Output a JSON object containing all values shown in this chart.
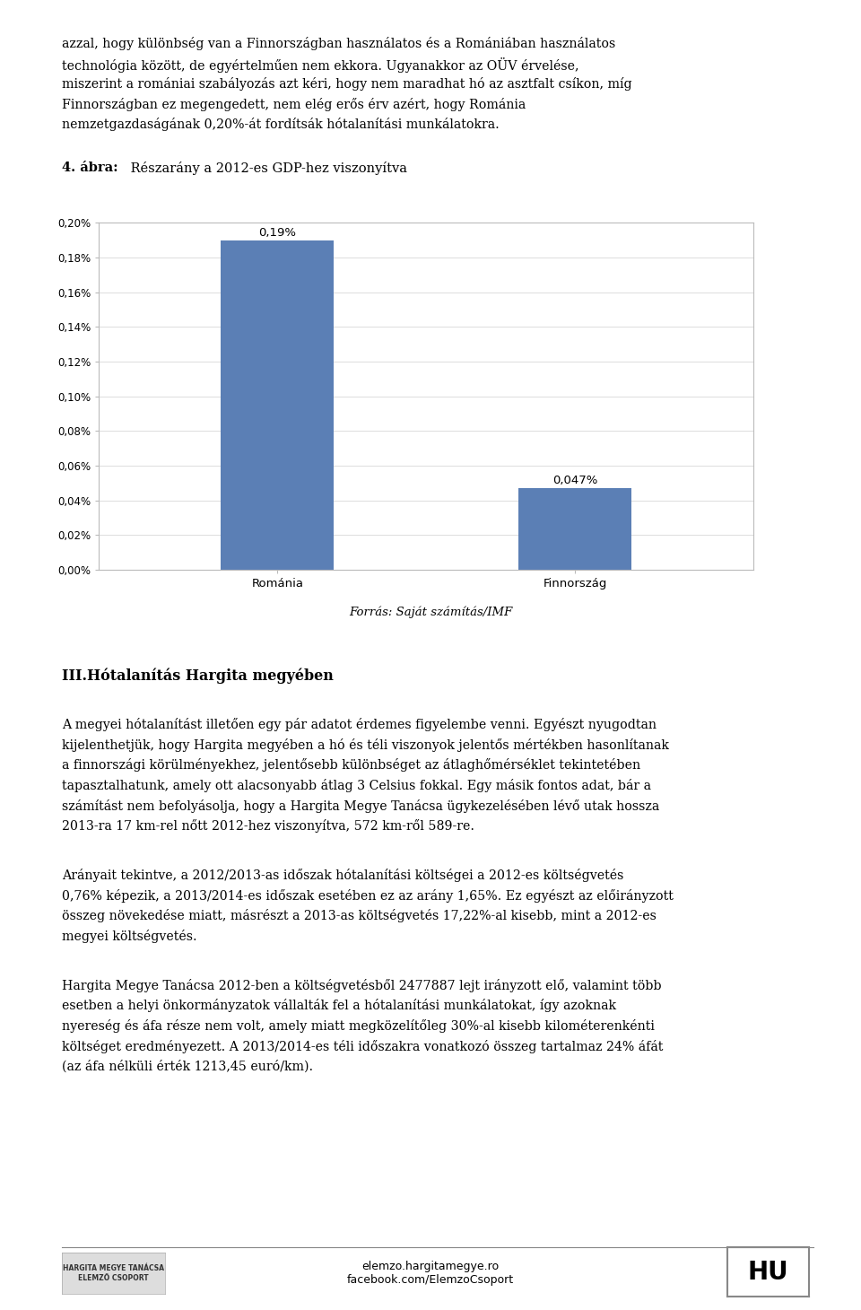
{
  "categories": [
    "Románia",
    "Finnország"
  ],
  "values": [
    0.0019,
    0.00047
  ],
  "bar_labels": [
    "0,19%",
    "0,047%"
  ],
  "bar_color": "#5B7FB5",
  "ylim": [
    0,
    0.002
  ],
  "yticks": [
    0.0,
    0.0002,
    0.0004,
    0.0006,
    0.0008,
    0.001,
    0.0012,
    0.0014,
    0.0016,
    0.0018,
    0.002
  ],
  "ytick_labels": [
    "0,00%",
    "0,02%",
    "0,04%",
    "0,06%",
    "0,08%",
    "0,10%",
    "0,12%",
    "0,14%",
    "0,16%",
    "0,18%",
    "0,20%"
  ],
  "source_label": "Forrás: Saját számítás/IMF",
  "chart_title_bold": "4. ábra:",
  "chart_title_rest": " Részarány a 2012-es GDP-hez viszonyítva",
  "page_title_top": "azzal, hogy különbség van a Finnországban használatos és a Romániában használatos\ntechnológia között, de egyértelműen nem ekkora. Ugyanakkor az OÜV érvelése,\nmiszerint a romániai szabályozás azt kéri, hogy nem maradhat hó az asztfalt csíkon, míg\nFinnországban ez megengedett, nem elég erős érv azért, hogy Románia\nnemzetgazdaságának 0,20%-át fordítsák hótalanítási munkálatokra.",
  "section_title": "III.Hótalanítás Hargita megyében",
  "body_text_1": "A megyei hótalanítást illetően egy pár adatot érdemes figyelembe venni. Egyészt nyugodtan kijelenthetjük, hogy Hargita megyében a hó és téli viszonyok jelentős mértékben hasonlítanak a finnországi körülményekhez, jelentősebb különbséget az átlaghőmérséklet tekintetében tapasztalhatunk, amely ott alacsonyabb átlag 3 Celsius fokkal. Egy másik fontos adat, bár a számítást nem befolyásolja, hogy a Hargita Megye Tanácsa ügykezelésében lévő utak hossza 2013-ra 17 km-rel nőtt 2012-hez viszonyítva, 572 km-ről 589-re.",
  "body_text_2": "Arányait tekintve, a 2012/2013-as időszak hótalanítási költségei a 2012-es költségvetés 0,76% képezik, a 2013/2014-es időszak esetében ez az arány 1,65%. Ez egyészt az előirányzott összeg növekedése miatt, másrészt a 2013-as költségvetés 17,22%-al kisebb, mint a 2012-es megyei költségvetés.",
  "body_text_3": "Hargita Megye Tanácsa 2012-ben a költségvetésből 2477887 lejt irányzott elő, valamint több esetben a helyi önkormányzatok vállalták fel a hótalanítási munkálatokat, így azoknak nyereség és áfa része nem volt, amely miatt megközelítőleg 30%-al kisebb kilométerenkénti költséget eredményezett. A 2013/2014-es téli időszakra vonatkozó összeg tartalmaz 24% áfát (az áfa nélküli érték 1213,45 euró/km).",
  "footer_left": "elemzo.hargitamegye.ro\nfacebook.com/ElemzoCsoport",
  "footer_right": "HU",
  "fig_width": 9.6,
  "fig_height": 14.6,
  "background_color": "#FFFFFF",
  "text_color": "#000000"
}
